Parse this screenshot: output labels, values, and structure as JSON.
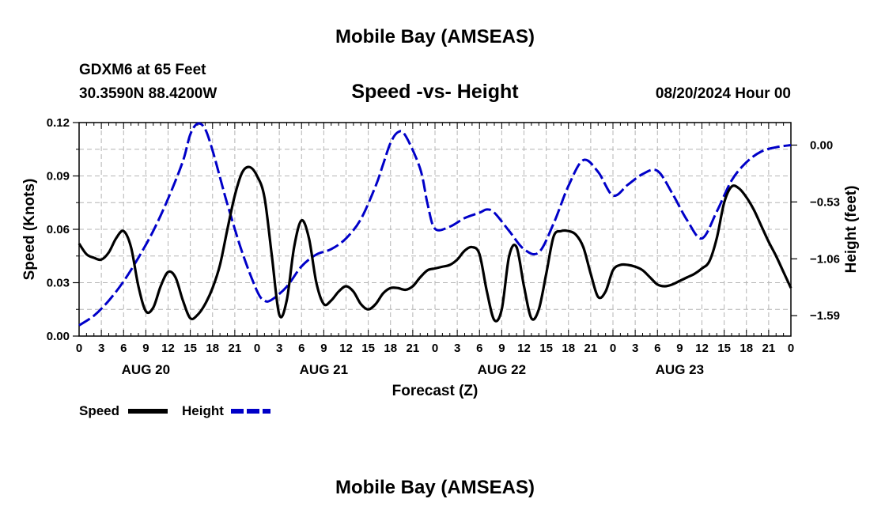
{
  "page": {
    "title": "Mobile Bay (AMSEAS)",
    "bottom_title": "Mobile Bay (AMSEAS)",
    "station": "GDXM6 at 65 Feet",
    "coords": "30.3590N  88.4200W",
    "datetime": "08/20/2024 Hour 00"
  },
  "colors": {
    "speed": "#000000",
    "height": "#0000c8",
    "grid": "#b4b4b4"
  },
  "chart_data": {
    "type": "line",
    "title": "Speed -vs- Height",
    "xlabel": "Forecast (Z)",
    "ylabel": "Speed (Knots)",
    "y2label": "Height (feet)",
    "xlim": [
      0,
      96
    ],
    "ylim": [
      0,
      0.12
    ],
    "y2lim": [
      -1.78,
      0.21
    ],
    "x_ticks": [
      0,
      3,
      6,
      9,
      12,
      15,
      18,
      21,
      24,
      27,
      30,
      33,
      36,
      39,
      42,
      45,
      48,
      51,
      54,
      57,
      60,
      63,
      66,
      69,
      72,
      75,
      78,
      81,
      84,
      87,
      90,
      93,
      96
    ],
    "x_tick_labels": [
      "0",
      "3",
      "6",
      "9",
      "12",
      "15",
      "18",
      "21",
      "0",
      "3",
      "6",
      "9",
      "12",
      "15",
      "18",
      "21",
      "0",
      "3",
      "6",
      "9",
      "12",
      "15",
      "18",
      "21",
      "0",
      "3",
      "6",
      "9",
      "12",
      "15",
      "18",
      "21",
      "0"
    ],
    "y_ticks": [
      0,
      0.03,
      0.06,
      0.09,
      0.12
    ],
    "y_tick_labels": [
      "0.00",
      "0.03",
      "0.06",
      "0.09",
      "0.12"
    ],
    "y2_ticks": [
      0.0,
      -0.53,
      -1.06,
      -1.59
    ],
    "y2_tick_labels": [
      "0.00",
      "−0.53",
      "−1.06",
      "−1.59"
    ],
    "day_labels": [
      {
        "label": "AUG 20",
        "x": 9
      },
      {
        "label": "AUG 21",
        "x": 33
      },
      {
        "label": "AUG 22",
        "x": 57
      },
      {
        "label": "AUG 23",
        "x": 81
      }
    ],
    "series": [
      {
        "name": "Speed",
        "axis": "left",
        "style": "solid",
        "x": [
          0,
          1,
          2,
          3,
          4,
          5,
          6,
          7,
          8,
          9,
          10,
          11,
          12,
          13,
          14,
          15,
          16,
          17,
          18,
          19,
          20,
          21,
          22,
          23,
          24,
          25,
          26,
          27,
          28,
          29,
          30,
          31,
          32,
          33,
          34,
          35,
          36,
          37,
          38,
          39,
          40,
          41,
          42,
          43,
          44,
          45,
          46,
          47,
          48,
          49,
          50,
          51,
          52,
          53,
          54,
          55,
          56,
          57,
          58,
          59,
          60,
          61,
          62,
          63,
          64,
          65,
          66,
          67,
          68,
          69,
          70,
          71,
          72,
          73,
          74,
          75,
          76,
          77,
          78,
          79,
          80,
          81,
          82,
          83,
          84,
          85,
          86,
          87,
          88,
          89,
          90,
          91,
          92,
          93,
          94,
          95,
          96
        ],
        "values": [
          0.052,
          0.046,
          0.044,
          0.043,
          0.047,
          0.055,
          0.059,
          0.05,
          0.028,
          0.014,
          0.016,
          0.028,
          0.036,
          0.033,
          0.02,
          0.01,
          0.012,
          0.018,
          0.027,
          0.04,
          0.06,
          0.079,
          0.092,
          0.095,
          0.09,
          0.078,
          0.045,
          0.012,
          0.02,
          0.05,
          0.065,
          0.055,
          0.03,
          0.018,
          0.02,
          0.025,
          0.028,
          0.025,
          0.018,
          0.015,
          0.018,
          0.024,
          0.027,
          0.027,
          0.026,
          0.028,
          0.033,
          0.037,
          0.038,
          0.039,
          0.04,
          0.043,
          0.048,
          0.05,
          0.046,
          0.025,
          0.009,
          0.015,
          0.045,
          0.05,
          0.028,
          0.01,
          0.015,
          0.035,
          0.056,
          0.059,
          0.059,
          0.057,
          0.05,
          0.035,
          0.022,
          0.025,
          0.037,
          0.04,
          0.04,
          0.039,
          0.037,
          0.033,
          0.029,
          0.028,
          0.029,
          0.031,
          0.033,
          0.035,
          0.038,
          0.042,
          0.055,
          0.075,
          0.084,
          0.083,
          0.078,
          0.071,
          0.062,
          0.053,
          0.045,
          0.036,
          0.027
        ]
      },
      {
        "name": "Height",
        "axis": "right",
        "style": "dashed",
        "x": [
          0,
          2,
          4,
          6,
          8,
          10,
          12,
          14,
          15,
          16,
          17,
          18,
          19,
          20,
          22,
          24,
          25,
          26,
          28,
          30,
          32,
          34,
          36,
          38,
          40,
          41,
          42,
          43,
          44,
          46,
          47,
          48,
          50,
          52,
          54,
          55,
          56,
          58,
          60,
          62,
          64,
          66,
          68,
          70,
          72,
          74,
          76,
          78,
          80,
          82,
          84,
          86,
          88,
          90,
          92,
          94,
          96
        ],
        "values": [
          -1.68,
          -1.59,
          -1.45,
          -1.27,
          -1.05,
          -0.8,
          -0.5,
          -0.15,
          0.1,
          0.2,
          0.15,
          -0.05,
          -0.3,
          -0.55,
          -1.0,
          -1.36,
          -1.45,
          -1.44,
          -1.32,
          -1.13,
          -1.02,
          -0.97,
          -0.87,
          -0.69,
          -0.38,
          -0.18,
          0.02,
          0.12,
          0.09,
          -0.22,
          -0.55,
          -0.78,
          -0.76,
          -0.68,
          -0.63,
          -0.6,
          -0.63,
          -0.8,
          -0.97,
          -1.0,
          -0.73,
          -0.38,
          -0.14,
          -0.25,
          -0.47,
          -0.37,
          -0.27,
          -0.24,
          -0.45,
          -0.7,
          -0.87,
          -0.62,
          -0.33,
          -0.16,
          -0.06,
          -0.02,
          0.0
        ]
      }
    ],
    "legend": [
      {
        "label": "Speed",
        "series": 0
      },
      {
        "label": "Height",
        "series": 1
      }
    ]
  }
}
